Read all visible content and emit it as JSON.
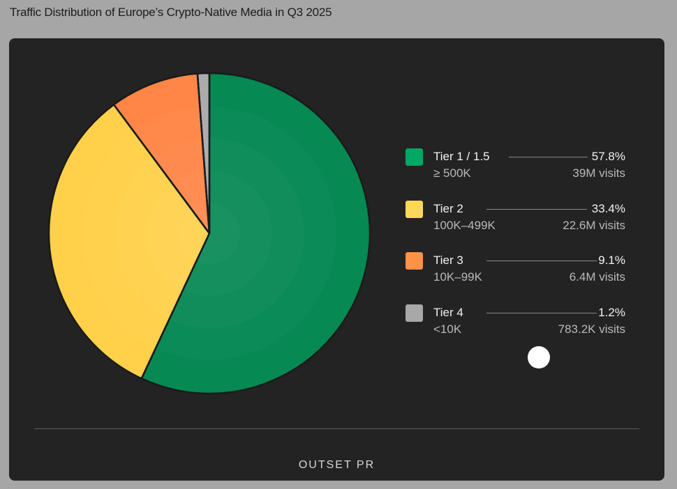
{
  "title": "Traffic Distribution of Europe’s Crypto-Native Media in Q3 2025",
  "brand": "OUTSET PR",
  "chart_data": {
    "type": "pie",
    "title": "Traffic Distribution of Europe’s Crypto-Native Media in Q3 2025",
    "categories": [
      "Tier 1 / 1.5",
      "Tier 2",
      "Tier 3",
      "Tier 4"
    ],
    "values": [
      57.8,
      33.4,
      9.1,
      1.2
    ],
    "colors": [
      "#00874f",
      "#ffcf45",
      "#ff8443",
      "#aaaaaa"
    ],
    "legend_position": "right"
  },
  "legend": [
    {
      "label": "Tier 1 / 1.5",
      "range": "≥ 500K",
      "percent": "57.8%",
      "visits": "39M visits",
      "color": "#00a765"
    },
    {
      "label": "Tier 2",
      "range": "100K–499K",
      "percent": "33.4%",
      "visits": "22.6M visits",
      "color": "#ffd85a"
    },
    {
      "label": "Tier 3",
      "range": "10K–99K",
      "percent": "9.1%",
      "visits": "6.4M visits",
      "color": "#ff9148"
    },
    {
      "label": "Tier 4",
      "range": "<10K",
      "percent": "1.2%",
      "visits": "783.2K visits",
      "color": "#a8a8a8"
    }
  ]
}
